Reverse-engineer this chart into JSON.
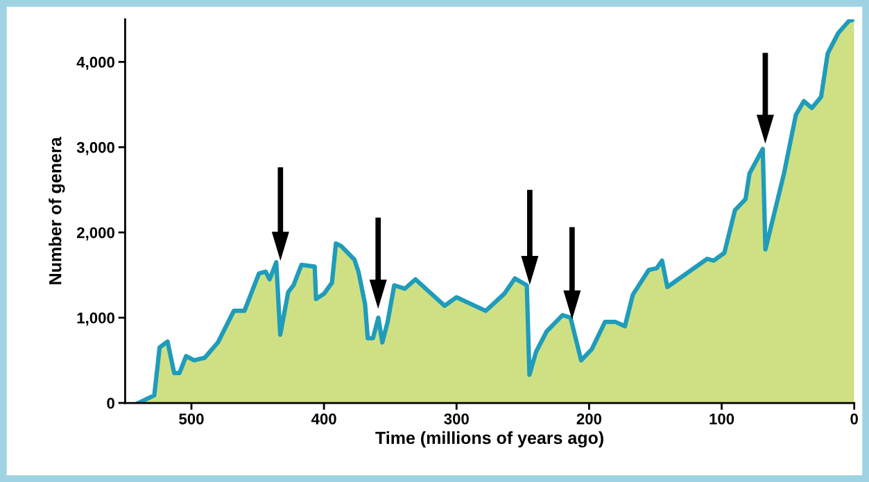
{
  "chart_data": {
    "type": "area",
    "xlabel": "Time (millions of years ago)",
    "ylabel": "Number of genera",
    "xlim": [
      550,
      0
    ],
    "xticks": [
      500,
      400,
      300,
      200,
      100,
      0
    ],
    "ylim": [
      0,
      4500
    ],
    "yticks": [
      0,
      {
        "value": 1000,
        "label": "1,000"
      },
      {
        "value": 2000,
        "label": "2,000"
      },
      {
        "value": 3000,
        "label": "3,000"
      },
      {
        "value": 4000,
        "label": "4,000"
      }
    ],
    "grid": false,
    "series": [
      {
        "color": "#cfe084",
        "x": [
          540,
          528,
          524,
          518,
          513,
          509,
          504,
          498,
          490,
          480,
          468,
          460,
          449,
          444,
          441,
          436,
          433,
          427,
          423,
          417,
          407,
          406,
          400,
          394,
          391,
          387,
          377,
          374,
          369,
          367,
          363,
          359,
          356,
          352,
          347,
          339,
          331,
          309,
          300,
          278,
          264,
          256,
          247,
          245,
          240,
          232,
          220,
          214,
          206,
          198,
          188,
          180,
          173,
          167,
          155,
          149,
          145,
          141,
          111,
          106,
          98,
          90,
          82,
          79,
          69,
          67,
          53,
          44,
          38,
          32,
          25,
          20,
          12,
          4,
          0
        ],
        "values": [
          0,
          90,
          650,
          720,
          350,
          350,
          550,
          500,
          530,
          710,
          1080,
          1080,
          1520,
          1540,
          1450,
          1650,
          800,
          1300,
          1380,
          1620,
          1600,
          1220,
          1280,
          1410,
          1870,
          1840,
          1680,
          1540,
          1160,
          760,
          760,
          1000,
          710,
          950,
          1380,
          1340,
          1450,
          1140,
          1240,
          1080,
          1280,
          1460,
          1380,
          330,
          600,
          840,
          1030,
          1000,
          500,
          630,
          950,
          950,
          900,
          1270,
          1560,
          1580,
          1670,
          1360,
          1690,
          1670,
          1760,
          2260,
          2390,
          2690,
          2980,
          1800,
          2690,
          3380,
          3540,
          3460,
          3590,
          4100,
          4340,
          4480,
          4500
        ]
      }
    ]
  }
}
